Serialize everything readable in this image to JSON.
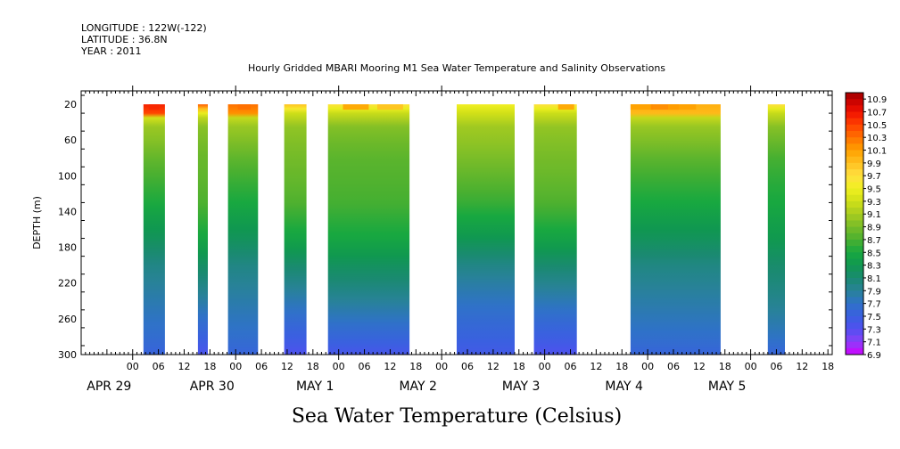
{
  "header": {
    "longitude": "LONGITUDE : 122W(-122)",
    "latitude": "LATITUDE : 36.8N",
    "year": "YEAR : 2011"
  },
  "plot_title": "Hourly Gridded MBARI Mooring M1 Sea Water Temperature and Salinity Observations",
  "bottom_title": "Sea Water Temperature (Celsius)",
  "chart_data": {
    "type": "heatmap",
    "title": "Hourly Gridded MBARI Mooring M1 Sea Water Temperature and Salinity Observations",
    "xlabel": "",
    "ylabel": "DEPTH (m)",
    "colorbar_label": "Sea Water Temperature (Celsius)",
    "x_unit": "hours",
    "xlim": [
      -12,
      163
    ],
    "ylim": [
      300,
      5
    ],
    "y_reversed": true,
    "y_ticks": [
      20,
      60,
      100,
      140,
      180,
      220,
      260,
      300
    ],
    "x_ticks": [
      {
        "hour": 0,
        "label": "00"
      },
      {
        "hour": 6,
        "label": "06"
      },
      {
        "hour": 12,
        "label": "12"
      },
      {
        "hour": 18,
        "label": "18"
      },
      {
        "hour": 24,
        "label": "00"
      },
      {
        "hour": 30,
        "label": "06"
      },
      {
        "hour": 36,
        "label": "12"
      },
      {
        "hour": 42,
        "label": "18"
      },
      {
        "hour": 48,
        "label": "00"
      },
      {
        "hour": 54,
        "label": "06"
      },
      {
        "hour": 60,
        "label": "12"
      },
      {
        "hour": 66,
        "label": "18"
      },
      {
        "hour": 72,
        "label": "00"
      },
      {
        "hour": 78,
        "label": "06"
      },
      {
        "hour": 84,
        "label": "12"
      },
      {
        "hour": 90,
        "label": "18"
      },
      {
        "hour": 96,
        "label": "00"
      },
      {
        "hour": 102,
        "label": "06"
      },
      {
        "hour": 108,
        "label": "12"
      },
      {
        "hour": 114,
        "label": "18"
      },
      {
        "hour": 120,
        "label": "00"
      },
      {
        "hour": 126,
        "label": "06"
      },
      {
        "hour": 132,
        "label": "12"
      },
      {
        "hour": 138,
        "label": "18"
      },
      {
        "hour": 144,
        "label": "00"
      },
      {
        "hour": 150,
        "label": "06"
      },
      {
        "hour": 156,
        "label": "12"
      },
      {
        "hour": 162,
        "label": "18"
      }
    ],
    "day_labels": [
      {
        "hour": -5.5,
        "label": "APR 29"
      },
      {
        "hour": 18.5,
        "label": "APR 30"
      },
      {
        "hour": 42.5,
        "label": "MAY  1"
      },
      {
        "hour": 66.5,
        "label": "MAY  2"
      },
      {
        "hour": 90.5,
        "label": "MAY  3"
      },
      {
        "hour": 114.5,
        "label": "MAY  4"
      },
      {
        "hour": 138.5,
        "label": "MAY  5"
      }
    ],
    "data_segments": [
      {
        "start_hour": 2.5,
        "end_hour": 7.5,
        "surface_temp": 10.4,
        "surface_depth": 28,
        "warm_patches": [
          {
            "hour": 5,
            "temp": 10.6
          }
        ]
      },
      {
        "start_hour": 15.2,
        "end_hour": 17.5,
        "surface_temp": 10.4,
        "surface_depth": 26,
        "warm_patches": []
      },
      {
        "start_hour": 22.2,
        "end_hour": 29.2,
        "surface_temp": 10.1,
        "surface_depth": 24,
        "warm_patches": [
          {
            "hour": 26,
            "temp": 10.3
          }
        ]
      },
      {
        "start_hour": 35.3,
        "end_hour": 40.5,
        "surface_temp": 9.9,
        "surface_depth": 24,
        "warm_patches": []
      },
      {
        "start_hour": 45.5,
        "end_hour": 64.5,
        "surface_temp": 9.7,
        "surface_depth": 24,
        "warm_patches": [
          {
            "hour": 52,
            "temp": 10.1
          },
          {
            "hour": 60,
            "temp": 9.9
          }
        ]
      },
      {
        "start_hour": 75.5,
        "end_hour": 89.0,
        "surface_temp": 9.5,
        "surface_depth": 22,
        "warm_patches": []
      },
      {
        "start_hour": 93.5,
        "end_hour": 103.5,
        "surface_temp": 9.7,
        "surface_depth": 23,
        "warm_patches": [
          {
            "hour": 101,
            "temp": 10.1
          }
        ]
      },
      {
        "start_hour": 116.0,
        "end_hour": 137.0,
        "surface_temp": 9.9,
        "surface_depth": 24,
        "warm_patches": [
          {
            "hour": 118,
            "temp": 10.1
          },
          {
            "hour": 124,
            "temp": 10.2
          },
          {
            "hour": 128,
            "temp": 10.1
          }
        ]
      },
      {
        "start_hour": 148.0,
        "end_hour": 152.0,
        "surface_temp": 9.7,
        "surface_depth": 22,
        "warm_patches": []
      }
    ],
    "colorbar": {
      "min": 6.9,
      "max": 11.0,
      "step": 0.1,
      "labels": [
        "10.9",
        "10.7",
        "10.5",
        "10.3",
        "10.1",
        "9.9",
        "9.7",
        "9.5",
        "9.3",
        "9.1",
        "8.9",
        "8.7",
        "8.5",
        "8.3",
        "8.1",
        "7.9",
        "7.7",
        "7.5",
        "7.3",
        "7.1",
        "6.9"
      ]
    },
    "colors": {
      "stops": [
        {
          "t": 6.9,
          "c": "#d000ff"
        },
        {
          "t": 7.1,
          "c": "#8a40f8"
        },
        {
          "t": 7.3,
          "c": "#5050f0"
        },
        {
          "t": 7.5,
          "c": "#3a60e0"
        },
        {
          "t": 7.7,
          "c": "#2f72c8"
        },
        {
          "t": 7.9,
          "c": "#288298"
        },
        {
          "t": 8.1,
          "c": "#1a8a70"
        },
        {
          "t": 8.3,
          "c": "#109850"
        },
        {
          "t": 8.5,
          "c": "#18a840"
        },
        {
          "t": 8.7,
          "c": "#4ab030"
        },
        {
          "t": 8.9,
          "c": "#78bc28"
        },
        {
          "t": 9.1,
          "c": "#a8cc20"
        },
        {
          "t": 9.3,
          "c": "#d0e018"
        },
        {
          "t": 9.5,
          "c": "#f0f020"
        },
        {
          "t": 9.7,
          "c": "#ffe040"
        },
        {
          "t": 9.9,
          "c": "#ffc020"
        },
        {
          "t": 10.1,
          "c": "#ffa000"
        },
        {
          "t": 10.3,
          "c": "#ff7000"
        },
        {
          "t": 10.5,
          "c": "#ff4000"
        },
        {
          "t": 10.7,
          "c": "#f01000"
        },
        {
          "t": 10.9,
          "c": "#c00000"
        },
        {
          "t": 11.0,
          "c": "#a00000"
        }
      ]
    }
  }
}
